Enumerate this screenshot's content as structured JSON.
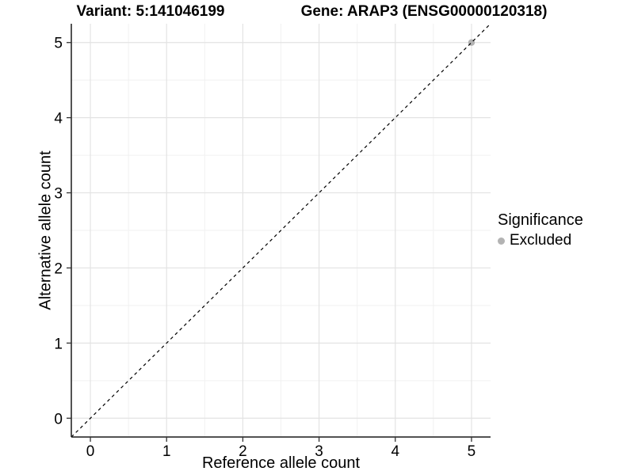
{
  "chart_data": {
    "type": "scatter",
    "titles": [
      "Variant: 5:141046199",
      "Gene: ARAP3 (ENSG00000120318)"
    ],
    "xlabel": "Reference allele count",
    "ylabel": "Alternative allele count",
    "xlim": [
      -0.25,
      5.25
    ],
    "ylim": [
      -0.25,
      5.25
    ],
    "x_ticks": [
      0,
      1,
      2,
      3,
      4,
      5
    ],
    "y_ticks": [
      0,
      1,
      2,
      3,
      4,
      5
    ],
    "x_minor": [
      0.5,
      1.5,
      2.5,
      3.5,
      4.5
    ],
    "y_minor": [
      0.5,
      1.5,
      2.5,
      3.5,
      4.5
    ],
    "grid": "major and minor gridlines on white panel",
    "identity_line": {
      "slope": 1,
      "intercept": 0,
      "linestyle": "dashed",
      "color": "#000000"
    },
    "series": [
      {
        "name": "Excluded",
        "color": "#b3b3b3",
        "points": [
          {
            "x": 5,
            "y": 5
          }
        ]
      }
    ],
    "legend": {
      "title": "Significance",
      "position": "right",
      "items": [
        {
          "label": "Excluded",
          "color": "#b3b3b3"
        }
      ]
    }
  },
  "style": {
    "grid_major_color": "#e3e3e3",
    "grid_minor_color": "#f1f1f1",
    "axis_line_color": "#1a1a1a",
    "tick_color": "#333333",
    "text_color": "#000000",
    "background": "#ffffff"
  }
}
